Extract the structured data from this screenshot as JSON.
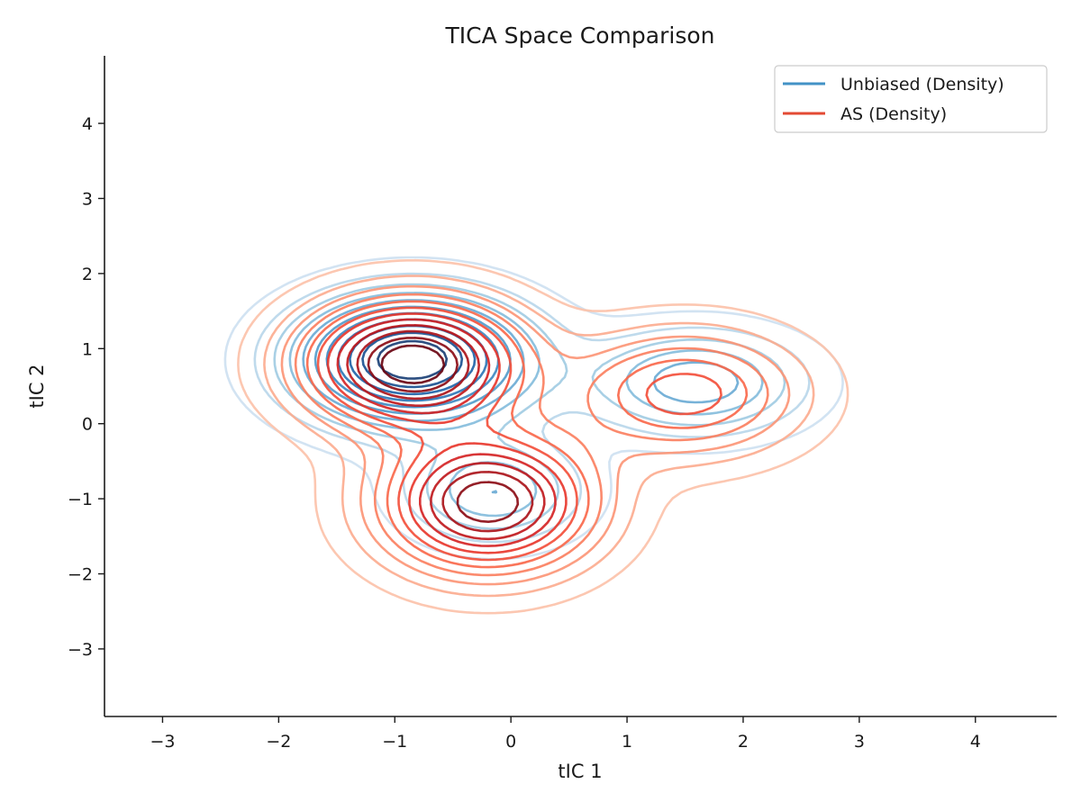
{
  "chart_data": {
    "type": "contour",
    "title": "TICA Space Comparison",
    "xlabel": "tIC 1",
    "ylabel": "tIC 2",
    "xlim": [
      -3.5,
      4.7
    ],
    "ylim": [
      -3.9,
      4.9
    ],
    "xticks": [
      -3,
      -2,
      -1,
      0,
      1,
      2,
      3,
      4
    ],
    "xtick_labels": [
      "−3",
      "−2",
      "−1",
      "0",
      "1",
      "2",
      "3",
      "4"
    ],
    "yticks": [
      -3,
      -2,
      -1,
      0,
      1,
      2,
      3,
      4
    ],
    "ytick_labels": [
      "−3",
      "−2",
      "−1",
      "0",
      "1",
      "2",
      "3",
      "4"
    ],
    "grid": false,
    "legend_position": "top-right",
    "series": [
      {
        "name": "Unbiased (Density)",
        "color": "#4292c6",
        "colormap": "Blues",
        "peaks": [
          {
            "x": -0.85,
            "y": 0.85,
            "sx": 0.65,
            "sy": 0.55,
            "w": 1.0
          },
          {
            "x": 1.6,
            "y": 0.55,
            "sx": 0.6,
            "sy": 0.45,
            "w": 0.42
          },
          {
            "x": -0.15,
            "y": -0.9,
            "sx": 0.5,
            "sy": 0.45,
            "w": 0.35
          }
        ],
        "levels": 11
      },
      {
        "name": "AS (Density)",
        "color": "#e34a33",
        "colormap": "Reds",
        "peaks": [
          {
            "x": -0.85,
            "y": 0.8,
            "sx": 0.6,
            "sy": 0.55,
            "w": 1.0
          },
          {
            "x": -0.2,
            "y": -1.05,
            "sx": 0.6,
            "sy": 0.6,
            "w": 0.9
          },
          {
            "x": 1.5,
            "y": 0.4,
            "sx": 0.65,
            "sy": 0.55,
            "w": 0.45
          }
        ],
        "levels": 12
      }
    ]
  }
}
